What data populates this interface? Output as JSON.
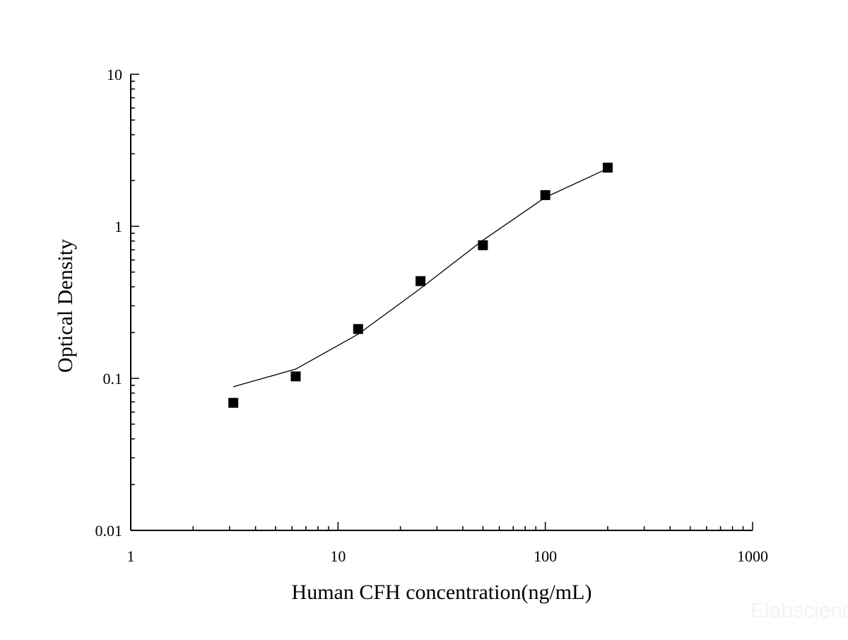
{
  "chart_data": {
    "type": "scatter",
    "title": "",
    "xlabel": "Human CFH concentration(ng/mL)",
    "ylabel": "Optical Density",
    "x_scale": "log",
    "y_scale": "log",
    "xlim": [
      1,
      1000
    ],
    "ylim": [
      0.01,
      10
    ],
    "x_ticks": [
      "1",
      "10",
      "100",
      "1000"
    ],
    "y_ticks": [
      "0.01",
      "0.1",
      "1",
      "10"
    ],
    "grid": false,
    "legend": "none",
    "series": [
      {
        "marker": "square",
        "color": "#000000",
        "x": [
          3.125,
          6.25,
          12.5,
          25,
          50,
          100,
          200
        ],
        "y": [
          0.069,
          0.103,
          0.211,
          0.436,
          0.751,
          1.604,
          2.431
        ]
      }
    ],
    "fit_curve": {
      "color": "#000000",
      "x": [
        3.125,
        6.25,
        12.5,
        25,
        50,
        100,
        200
      ],
      "y": [
        0.088,
        0.115,
        0.195,
        0.39,
        0.81,
        1.55,
        2.4
      ]
    }
  },
  "watermark": "Elabscience"
}
